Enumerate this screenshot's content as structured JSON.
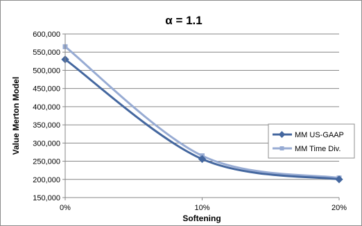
{
  "chart_data": {
    "type": "line",
    "title": "α = 1.1",
    "xlabel": "Softening",
    "ylabel": "Value Merton Model",
    "categories": [
      "0%",
      "10%",
      "20%"
    ],
    "x": [
      0,
      10,
      20
    ],
    "ylim": [
      150000,
      600000
    ],
    "yticks": [
      150000,
      200000,
      250000,
      300000,
      350000,
      400000,
      450000,
      500000,
      550000,
      600000
    ],
    "ytick_labels": [
      "150,000",
      "200,000",
      "250,000",
      "300,000",
      "350,000",
      "400,000",
      "450,000",
      "500,000",
      "550,000",
      "600,000"
    ],
    "grid": true,
    "legend_position": "right",
    "series": [
      {
        "name": "MM US-GAAP",
        "values": [
          530000,
          256000,
          200000
        ],
        "color": "#44679f"
      },
      {
        "name": "MM Time Div.",
        "values": [
          565000,
          265000,
          204000
        ],
        "color": "#97abd3"
      }
    ]
  }
}
